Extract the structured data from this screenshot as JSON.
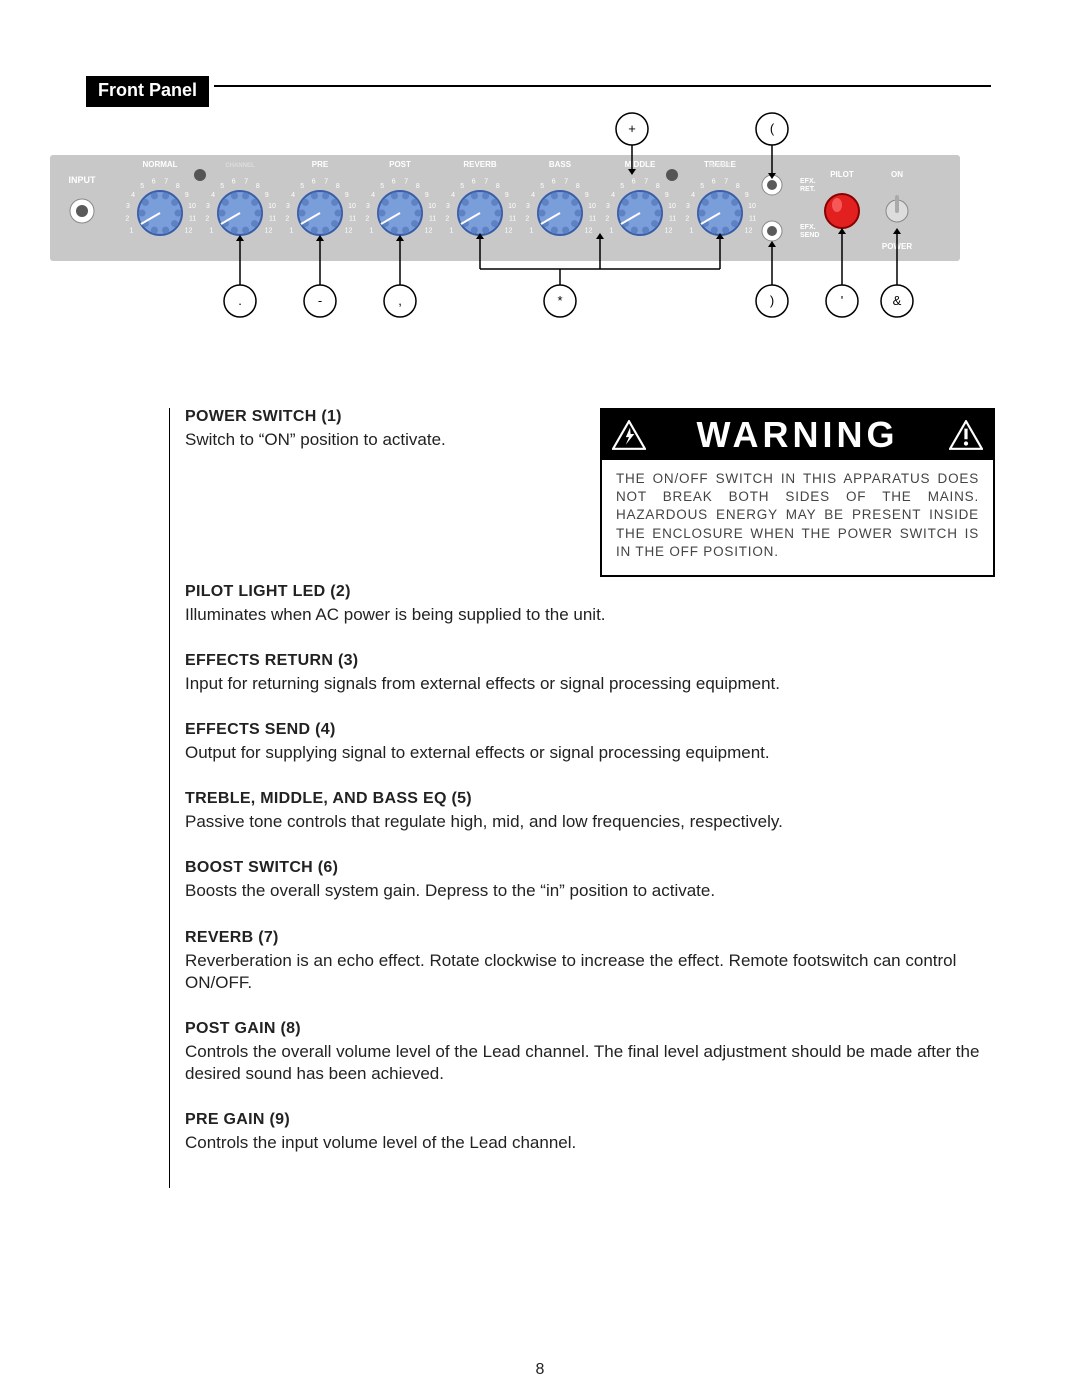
{
  "section_title": "Front Panel",
  "page_number": "8",
  "panel": {
    "bg": "#c8c8c8",
    "input_label": "INPUT",
    "knob_header_color": "#ffffff",
    "tick_color": "#ffffff",
    "knob_body_color": "#7a9ed9",
    "knobs": [
      {
        "label": "NORMAL",
        "sub": ""
      },
      {
        "label": "",
        "sub": "CHANNEL"
      },
      {
        "label": "PRE",
        "sub": ""
      },
      {
        "label": "POST",
        "sub": ""
      },
      {
        "label": "REVERB",
        "sub": ""
      },
      {
        "label": "BASS",
        "sub": ""
      },
      {
        "label": "MIDDLE",
        "sub": ""
      },
      {
        "label": "TREBLE",
        "sub": "BOOST"
      }
    ],
    "knob_scale": [
      "1",
      "2",
      "3",
      "4",
      "5",
      "6",
      "7",
      "8",
      "9",
      "10",
      "11",
      "12"
    ],
    "right_labels": {
      "efx_ret": "EFX.\nRET.",
      "efx_send": "EFX.\nSEND",
      "pilot": "PILOT",
      "on": "ON",
      "power": "POWER"
    },
    "pilot_color": "#e22020",
    "jack_color": "#5a5a5a"
  },
  "callouts": {
    "top": [
      {
        "mark": "+"
      },
      {
        "mark": "("
      }
    ],
    "bottom": [
      {
        "mark": "."
      },
      {
        "mark": "-"
      },
      {
        "mark": ","
      },
      {
        "mark": "*"
      },
      {
        "mark": ")"
      },
      {
        "mark": "'"
      },
      {
        "mark": "&"
      }
    ],
    "circle_r": 16,
    "stroke": "#000"
  },
  "warning": {
    "title": "WARNING",
    "text": "THE ON/OFF SWITCH IN THIS APPARATUS DOES NOT BREAK BOTH SIDES OF THE MAINS. HAZARDOUS ENERGY MAY BE PRESENT INSIDE THE ENCLOSURE WHEN THE POWER SWITCH IS IN THE OFF POSITION."
  },
  "items": [
    {
      "h": "POWER SWITCH (1)",
      "t": "Switch to “ON” position to activate."
    },
    {
      "h": "PILOT LIGHT LED (2)",
      "t": "Illuminates when AC power is being supplied to the unit."
    },
    {
      "h": "EFFECTS RETURN (3)",
      "t": "Input for returning signals from external effects or signal processing equipment."
    },
    {
      "h": "EFFECTS SEND (4)",
      "t": "Output for supplying signal to external effects or signal processing equipment."
    },
    {
      "h": "TREBLE, MIDDLE, AND BASS EQ (5)",
      "t": "Passive tone controls that regulate high, mid, and low frequencies, respectively."
    },
    {
      "h": "BOOST SWITCH (6)",
      "t": "Boosts the overall system gain. Depress to the “in” position to activate."
    },
    {
      "h": "REVERB (7)",
      "t": "Reverberation is an echo effect. Rotate clockwise to increase the effect. Remote footswitch can control ON/OFF."
    },
    {
      "h": "POST GAIN (8)",
      "t": "Controls the overall volume level of the Lead channel. The final level adjustment should be made after the desired sound has been achieved."
    },
    {
      "h": "PRE GAIN (9)",
      "t": "Controls the input volume level of the Lead channel."
    }
  ]
}
